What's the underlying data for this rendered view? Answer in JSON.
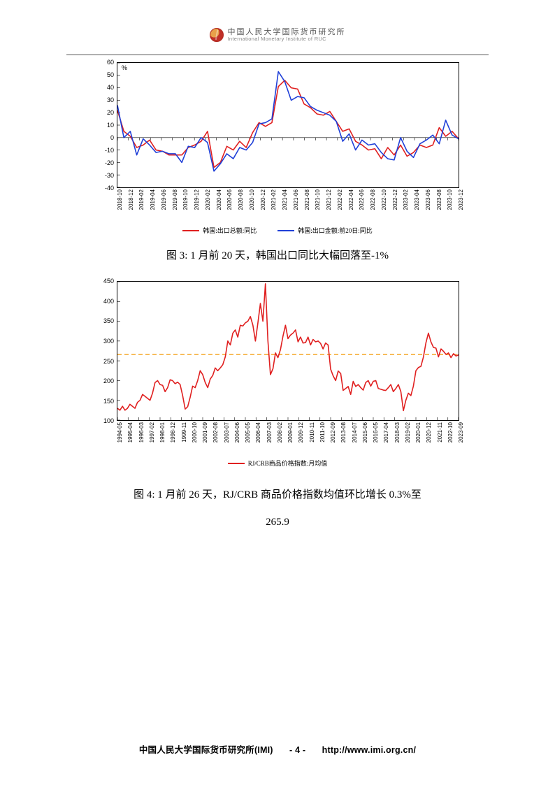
{
  "header": {
    "cn": "中国人民大学国际货币研究所",
    "en": "International Monetary Institute of RUC"
  },
  "chart1": {
    "type": "line",
    "unit_label": "%",
    "ylim": [
      -40,
      60
    ],
    "ytick_step": 10,
    "yticks": [
      -40,
      -30,
      -20,
      -10,
      0,
      10,
      20,
      30,
      40,
      50,
      60
    ],
    "x_labels": [
      "2018-10",
      "2018-12",
      "2019-02",
      "2019-04",
      "2019-06",
      "2019-08",
      "2019-10",
      "2019-12",
      "2020-02",
      "2020-04",
      "2020-06",
      "2020-08",
      "2020-10",
      "2020-12",
      "2021-02",
      "2021-04",
      "2021-06",
      "2021-08",
      "2021-10",
      "2021-12",
      "2022-02",
      "2022-04",
      "2022-06",
      "2022-08",
      "2022-10",
      "2022-12",
      "2023-02",
      "2023-04",
      "2023-06",
      "2023-08",
      "2023-10",
      "2023-12"
    ],
    "series": [
      {
        "name": "韩国:出口总额:同比",
        "color": "#e02020",
        "width": 1.6,
        "y": [
          22,
          5,
          1,
          -8,
          -6,
          -2,
          -10,
          -11,
          -14,
          -14,
          -14,
          -8,
          -6,
          -3,
          5,
          -24,
          -20,
          -7,
          -10,
          -3,
          -8,
          4,
          12,
          9,
          12,
          41,
          46,
          40,
          39,
          27,
          24,
          19,
          18,
          21,
          13,
          5,
          7,
          -3,
          -6,
          -10,
          -9,
          -17,
          -8,
          -14,
          -6,
          -15,
          -12,
          -6,
          -8,
          -6,
          8,
          1,
          5,
          -1
        ]
      },
      {
        "name": "韩国:出口金额:前20日:同比",
        "color": "#2040d8",
        "width": 1.6,
        "y": [
          26,
          0,
          5,
          -14,
          -1,
          -6,
          -12,
          -11,
          -13,
          -13,
          -20,
          -7,
          -8,
          0,
          -4,
          -27,
          -21,
          -13,
          -17,
          -8,
          -10,
          -4,
          11,
          12,
          15,
          53,
          45,
          30,
          33,
          32,
          25,
          22,
          20,
          18,
          13,
          -3,
          3,
          -10,
          -2,
          -6,
          -5,
          -12,
          -17,
          -18,
          0,
          -11,
          -16,
          -5,
          -2,
          2,
          -5,
          14,
          2,
          -1
        ]
      }
    ],
    "legend": [
      {
        "label": "韩国:出口总额:同比",
        "color": "#e02020"
      },
      {
        "label": "韩国:出口金额:前20日:同比",
        "color": "#2040d8"
      }
    ],
    "axis_color": "#000000",
    "background_color": "#ffffff"
  },
  "caption1": "图 3: 1 月前 20 天，韩国出口同比大幅回落至-1%",
  "chart2": {
    "type": "line",
    "ylim": [
      100,
      450
    ],
    "ytick_step": 50,
    "yticks": [
      100,
      150,
      200,
      250,
      300,
      350,
      400,
      450
    ],
    "ref_line": {
      "value": 265.9,
      "color": "#f5a623",
      "dash": "6,4",
      "width": 1.4
    },
    "x_labels": [
      "1994-05",
      "1995-04",
      "1996-03",
      "1997-02",
      "1998-01",
      "1998-12",
      "1999-11",
      "2000-10",
      "2001-09",
      "2002-08",
      "2003-07",
      "2004-06",
      "2005-05",
      "2006-04",
      "2007-03",
      "2008-02",
      "2009-01",
      "2009-12",
      "2010-11",
      "2011-10",
      "2012-09",
      "2013-08",
      "2014-07",
      "2015-06",
      "2016-05",
      "2017-04",
      "2018-03",
      "2019-02",
      "2020-01",
      "2020-12",
      "2021-11",
      "2022-10",
      "2023-09"
    ],
    "series": [
      {
        "name": "RJ/CRB商品价格指数:月均值",
        "color": "#e02020",
        "width": 1.6,
        "y": [
          130,
          125,
          135,
          125,
          130,
          140,
          135,
          130,
          145,
          150,
          165,
          160,
          155,
          150,
          168,
          195,
          200,
          190,
          188,
          172,
          182,
          202,
          200,
          192,
          196,
          190,
          162,
          128,
          134,
          158,
          186,
          182,
          200,
          225,
          215,
          195,
          182,
          204,
          213,
          232,
          225,
          232,
          240,
          260,
          300,
          290,
          320,
          328,
          310,
          340,
          338,
          346,
          350,
          362,
          340,
          300,
          345,
          395,
          350,
          445,
          300,
          215,
          230,
          270,
          258,
          278,
          312,
          340,
          306,
          315,
          320,
          328,
          298,
          310,
          295,
          296,
          310,
          290,
          304,
          298,
          300,
          294,
          280,
          295,
          290,
          229,
          212,
          200,
          224,
          218,
          175,
          180,
          185,
          165,
          198,
          185,
          190,
          182,
          176,
          195,
          200,
          186,
          198,
          200,
          180,
          178,
          176,
          175,
          182,
          190,
          172,
          180,
          190,
          172,
          124,
          150,
          168,
          162,
          186,
          225,
          233,
          236,
          260,
          296,
          320,
          298,
          284,
          282,
          260,
          280,
          274,
          266,
          270,
          258,
          268,
          262,
          265
        ]
      }
    ],
    "legend": [
      {
        "label": "RJ/CRB商品价格指数:月均值",
        "color": "#e02020"
      }
    ],
    "axis_color": "#000000",
    "background_color": "#ffffff"
  },
  "caption2_line1": "图 4: 1 月前 26 天，RJ/CRB 商品价格指数均值环比增长 0.3%至",
  "caption2_line2": "265.9",
  "footer": {
    "org": "中国人民大学国际货币研究所(IMI)",
    "page": "- 4 -",
    "url": "http://www.imi.org.cn/"
  },
  "colors": {
    "text": "#000000",
    "grid": "#000000"
  }
}
